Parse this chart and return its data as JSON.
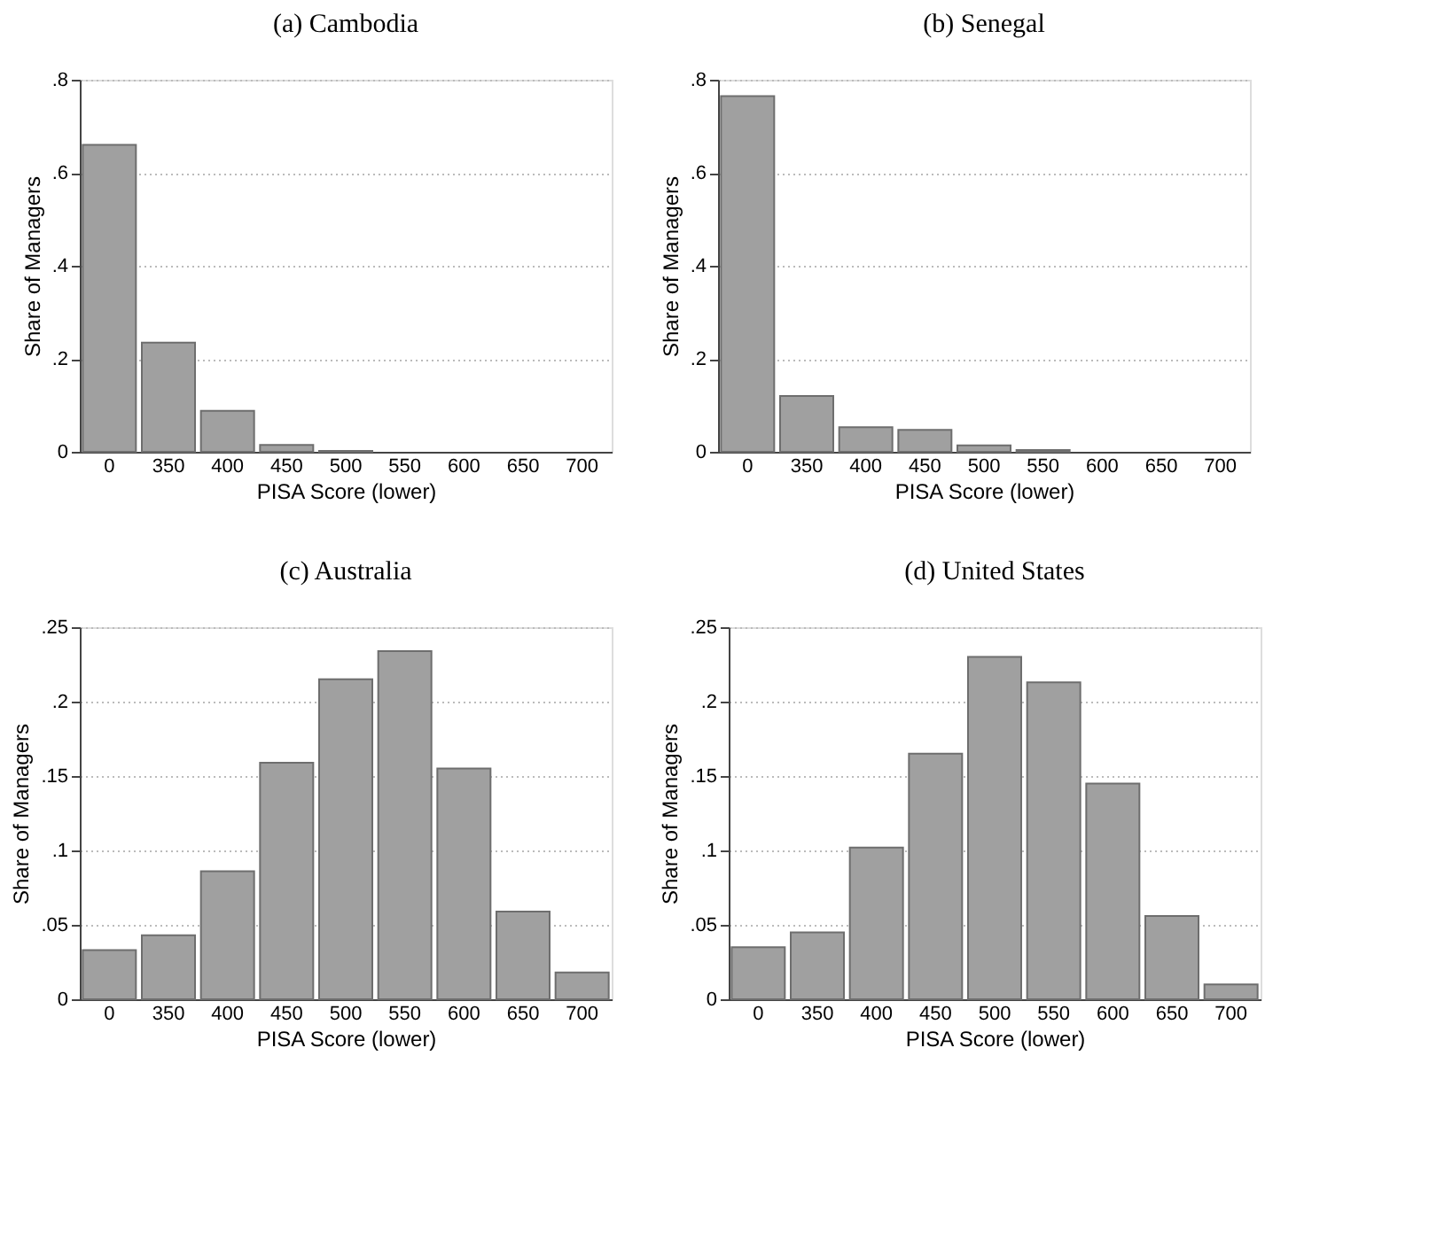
{
  "chart_data": [
    {
      "type": "bar",
      "title": "(a) Cambodia",
      "xlabel": "PISA Score (lower)",
      "ylabel": "Share of Managers",
      "categories": [
        "0",
        "350",
        "400",
        "450",
        "500",
        "550",
        "600",
        "650",
        "700"
      ],
      "color": "#a0a0a0",
      "values": [
        0.66,
        0.235,
        0.088,
        0.015,
        0.002,
        0,
        0,
        0,
        0
      ],
      "ylim": [
        0,
        0.8
      ],
      "yticks": [
        0,
        {
          "value": 0.2,
          "label": ".2"
        },
        {
          "value": 0.4,
          "label": ".4"
        },
        {
          "value": 0.6,
          "label": ".6"
        },
        {
          "value": 0.8,
          "label": ".8"
        }
      ],
      "grid": "y"
    },
    {
      "type": "bar",
      "title": "(b) Senegal",
      "xlabel": "PISA Score (lower)",
      "ylabel": "Share of Managers",
      "categories": [
        "0",
        "350",
        "400",
        "450",
        "500",
        "550",
        "600",
        "650",
        "700"
      ],
      "color": "#a0a0a0",
      "values": [
        0.765,
        0.12,
        0.053,
        0.047,
        0.014,
        0.004,
        0,
        0,
        0
      ],
      "ylim": [
        0,
        0.8
      ],
      "yticks": [
        0,
        {
          "value": 0.2,
          "label": ".2"
        },
        {
          "value": 0.4,
          "label": ".4"
        },
        {
          "value": 0.6,
          "label": ".6"
        },
        {
          "value": 0.8,
          "label": ".8"
        }
      ],
      "grid": "y"
    },
    {
      "type": "bar",
      "title": "(c) Australia",
      "xlabel": "PISA Score (lower)",
      "ylabel": "Share of Managers",
      "categories": [
        "0",
        "350",
        "400",
        "450",
        "500",
        "550",
        "600",
        "650",
        "700"
      ],
      "color": "#a0a0a0",
      "values": [
        0.033,
        0.043,
        0.086,
        0.159,
        0.215,
        0.234,
        0.155,
        0.059,
        0.018
      ],
      "ylim": [
        0,
        0.25
      ],
      "yticks": [
        0,
        {
          "value": 0.05,
          "label": ".05"
        },
        {
          "value": 0.1,
          "label": ".1"
        },
        {
          "value": 0.15,
          "label": ".15"
        },
        {
          "value": 0.2,
          "label": ".2"
        },
        {
          "value": 0.25,
          "label": ".25"
        }
      ],
      "grid": "y"
    },
    {
      "type": "bar",
      "title": "(d) United States",
      "xlabel": "PISA Score (lower)",
      "ylabel": "Share of Managers",
      "categories": [
        "0",
        "350",
        "400",
        "450",
        "500",
        "550",
        "600",
        "650",
        "700"
      ],
      "color": "#a0a0a0",
      "values": [
        0.035,
        0.045,
        0.102,
        0.165,
        0.23,
        0.213,
        0.145,
        0.056,
        0.01
      ],
      "ylim": [
        0,
        0.25
      ],
      "yticks": [
        0,
        {
          "value": 0.05,
          "label": ".05"
        },
        {
          "value": 0.1,
          "label": ".1"
        },
        {
          "value": 0.15,
          "label": ".15"
        },
        {
          "value": 0.2,
          "label": ".2"
        },
        {
          "value": 0.25,
          "label": ".25"
        }
      ],
      "grid": "y"
    }
  ]
}
